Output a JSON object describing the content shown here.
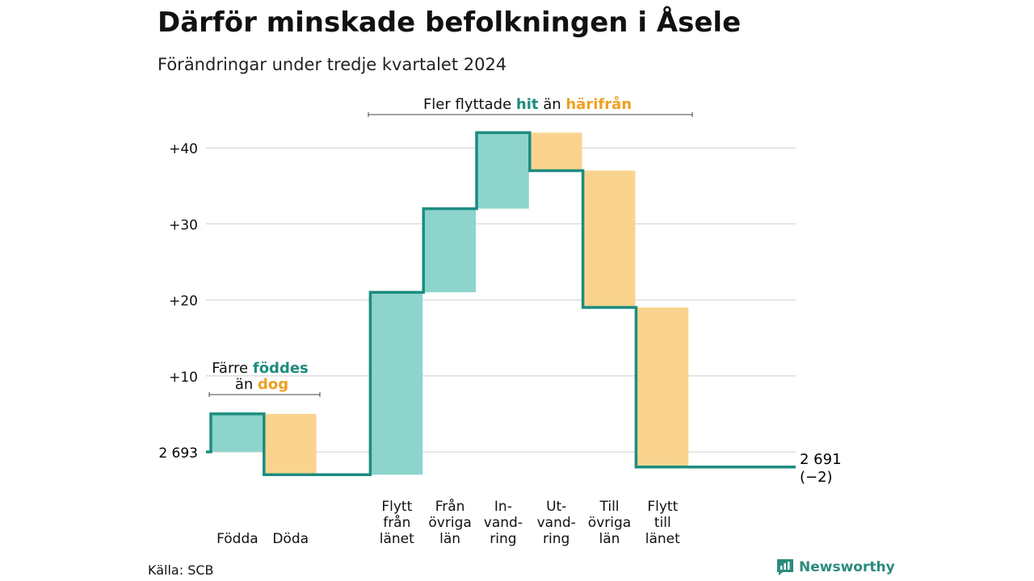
{
  "title": "Därför minskade befolkningen i Åsele",
  "subtitle": "Förändringar under tredje kvartalet 2024",
  "source": "Källa: SCB",
  "brand": "Newsworthy",
  "colors": {
    "increase": "#8dd5cc",
    "decrease": "#fad48e",
    "line": "#1d8c80",
    "accent_hit": "#1d8c80",
    "accent_harifran": "#f0a020",
    "grid": "#dddddd"
  },
  "annotations": {
    "births_deaths": {
      "line1_a": "Färre ",
      "line1_b": "föddes",
      "line2_a": "än ",
      "line2_b": "dog"
    },
    "moves": {
      "a": "Fler flyttade ",
      "b": "hit",
      "c": " än ",
      "d": "härifrån"
    }
  },
  "chart_data": {
    "type": "waterfall",
    "start_label": "2 693",
    "start_value": 2693,
    "end_label": "2 691",
    "end_change_label": "(−2)",
    "end_value": 2691,
    "y_ticks": [
      {
        "value": 10,
        "label": "+10"
      },
      {
        "value": 20,
        "label": "+20"
      },
      {
        "value": 30,
        "label": "+30"
      },
      {
        "value": 40,
        "label": "+40"
      }
    ],
    "ylim": [
      -4,
      44
    ],
    "steps": [
      {
        "label": [
          "Födda"
        ],
        "change": 5,
        "direction": "increase"
      },
      {
        "label": [
          "Döda"
        ],
        "change": -8,
        "direction": "decrease"
      },
      {
        "label": [
          "Flytt",
          "från",
          "länet"
        ],
        "change": 24,
        "direction": "increase"
      },
      {
        "label": [
          "Från",
          "övriga",
          "län"
        ],
        "change": 11,
        "direction": "increase"
      },
      {
        "label": [
          "In-",
          "vand-",
          "ring"
        ],
        "change": 10,
        "direction": "increase"
      },
      {
        "label": [
          "Ut-",
          "vand-",
          "ring"
        ],
        "change": -5,
        "direction": "decrease"
      },
      {
        "label": [
          "Till",
          "övriga",
          "län"
        ],
        "change": -18,
        "direction": "decrease"
      },
      {
        "label": [
          "Flytt",
          "till",
          "länet"
        ],
        "change": -21,
        "direction": "decrease"
      }
    ]
  }
}
